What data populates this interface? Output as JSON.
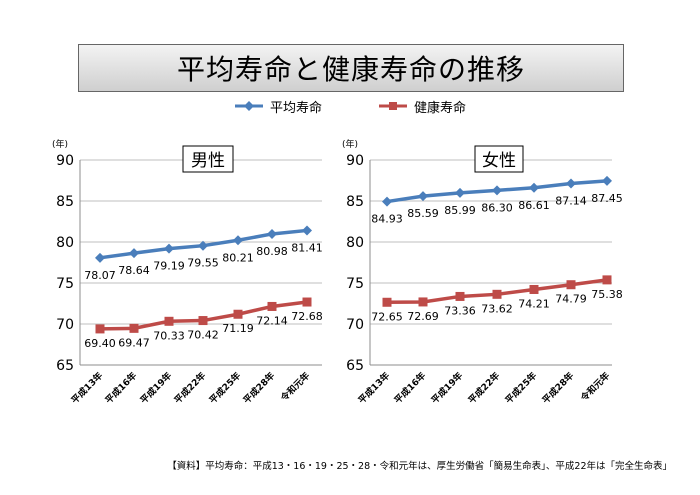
{
  "title": "平均寿命と健康寿命の推移",
  "legend": {
    "series1_label": "平均寿命",
    "series2_label": "健康寿命"
  },
  "colors": {
    "series1": "#4a7ebb",
    "series2": "#be4b48"
  },
  "caption": "【資料】平均寿命：平成13・16・19・25・28・令和元年は、厚生労働省「簡易生命表」、平成22年は「完全生命表」",
  "chart_data": [
    {
      "type": "line",
      "title": "男性",
      "ylabel": "(年)",
      "ylim": [
        65,
        90
      ],
      "yticks": [
        65,
        70,
        75,
        80,
        85,
        90
      ],
      "categories": [
        "平成13年",
        "平成16年",
        "平成19年",
        "平成22年",
        "平成25年",
        "平成28年",
        "令和元年"
      ],
      "series": [
        {
          "name": "平均寿命",
          "values": [
            78.07,
            78.64,
            79.19,
            79.55,
            80.21,
            80.98,
            81.41
          ],
          "labels": [
            "78.07",
            "78.64",
            "79.19",
            "79.55",
            "80.21",
            "80.98",
            "81.41"
          ]
        },
        {
          "name": "健康寿命",
          "values": [
            69.4,
            69.47,
            70.33,
            70.42,
            71.19,
            72.14,
            72.68
          ],
          "labels": [
            "69.40",
            "69.47",
            "70.33",
            "70.42",
            "71.19",
            "72.14",
            "72.68"
          ]
        }
      ],
      "grid": true
    },
    {
      "type": "line",
      "title": "女性",
      "ylabel": "(年)",
      "ylim": [
        65,
        90
      ],
      "yticks": [
        65,
        70,
        75,
        80,
        85,
        90
      ],
      "categories": [
        "平成13年",
        "平成16年",
        "平成19年",
        "平成22年",
        "平成25年",
        "平成28年",
        "令和元年"
      ],
      "series": [
        {
          "name": "平均寿命",
          "values": [
            84.93,
            85.59,
            85.99,
            86.3,
            86.61,
            87.14,
            87.45
          ],
          "labels": [
            "84.93",
            "85.59",
            "85.99",
            "86.30",
            "86.61",
            "87.14",
            "87.45"
          ]
        },
        {
          "name": "健康寿命",
          "values": [
            72.65,
            72.69,
            73.36,
            73.62,
            74.21,
            74.79,
            75.38
          ],
          "labels": [
            "72.65",
            "72.69",
            "73.36",
            "73.62",
            "74.21",
            "74.79",
            "75.38"
          ]
        }
      ],
      "grid": true
    }
  ]
}
